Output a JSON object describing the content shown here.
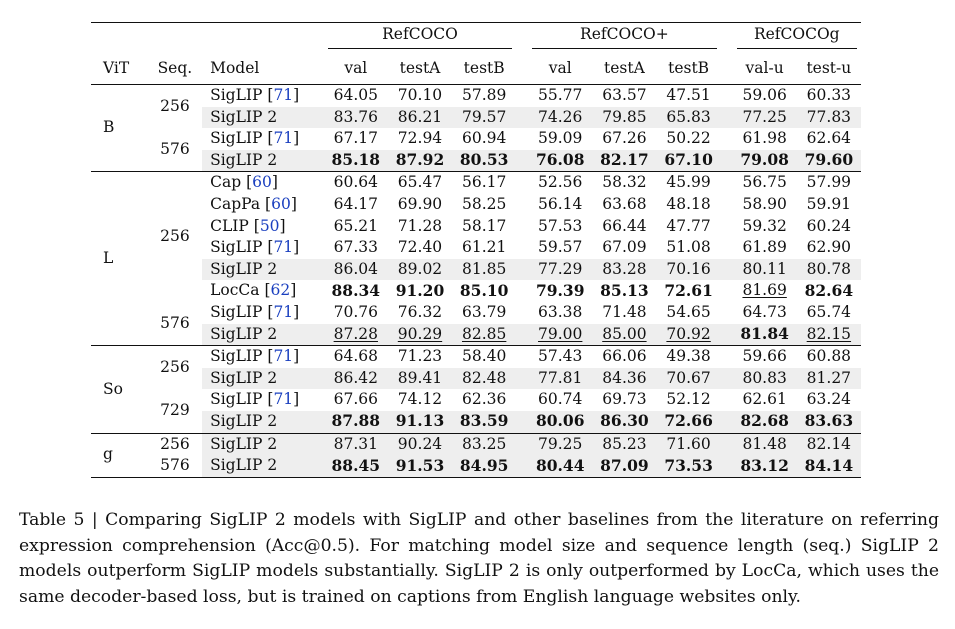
{
  "table": {
    "group_headers": [
      "RefCOCO",
      "RefCOCO+",
      "RefCOCOg"
    ],
    "column_headers": [
      "ViT",
      "Seq.",
      "Model",
      "val",
      "testA",
      "testB",
      "val",
      "testA",
      "testB",
      "val-u",
      "test-u"
    ],
    "vit_labels": [
      "B",
      "L",
      "So",
      "g"
    ],
    "seq_labels": [
      "256",
      "576",
      "256",
      "576",
      "256",
      "729",
      "256",
      "576"
    ],
    "rows": [
      {
        "model": "SigLIP",
        "ref": "71",
        "values": [
          "64.05",
          "70.10",
          "57.89",
          "55.77",
          "63.57",
          "47.51",
          "59.06",
          "60.33"
        ]
      },
      {
        "model": "SigLIP 2",
        "ref": "",
        "values": [
          "83.76",
          "86.21",
          "79.57",
          "74.26",
          "79.85",
          "65.83",
          "77.25",
          "77.83"
        ]
      },
      {
        "model": "SigLIP",
        "ref": "71",
        "values": [
          "67.17",
          "72.94",
          "60.94",
          "59.09",
          "67.26",
          "50.22",
          "61.98",
          "62.64"
        ]
      },
      {
        "model": "SigLIP 2",
        "ref": "",
        "values": [
          "85.18",
          "87.92",
          "80.53",
          "76.08",
          "82.17",
          "67.10",
          "79.08",
          "79.60"
        ]
      },
      {
        "model": "Cap",
        "ref": "60",
        "values": [
          "60.64",
          "65.47",
          "56.17",
          "52.56",
          "58.32",
          "45.99",
          "56.75",
          "57.99"
        ]
      },
      {
        "model": "CapPa",
        "ref": "60",
        "values": [
          "64.17",
          "69.90",
          "58.25",
          "56.14",
          "63.68",
          "48.18",
          "58.90",
          "59.91"
        ]
      },
      {
        "model": "CLIP",
        "ref": "50",
        "values": [
          "65.21",
          "71.28",
          "58.17",
          "57.53",
          "66.44",
          "47.77",
          "59.32",
          "60.24"
        ]
      },
      {
        "model": "SigLIP",
        "ref": "71",
        "values": [
          "67.33",
          "72.40",
          "61.21",
          "59.57",
          "67.09",
          "51.08",
          "61.89",
          "62.90"
        ]
      },
      {
        "model": "SigLIP 2",
        "ref": "",
        "values": [
          "86.04",
          "89.02",
          "81.85",
          "77.29",
          "83.28",
          "70.16",
          "80.11",
          "80.78"
        ]
      },
      {
        "model": "LocCa",
        "ref": "62",
        "values": [
          "88.34",
          "91.20",
          "85.10",
          "79.39",
          "85.13",
          "72.61",
          "81.69",
          "82.64"
        ]
      },
      {
        "model": "SigLIP",
        "ref": "71",
        "values": [
          "70.76",
          "76.32",
          "63.79",
          "63.38",
          "71.48",
          "54.65",
          "64.73",
          "65.74"
        ]
      },
      {
        "model": "SigLIP 2",
        "ref": "",
        "values": [
          "87.28",
          "90.29",
          "82.85",
          "79.00",
          "85.00",
          "70.92",
          "81.84",
          "82.15"
        ]
      },
      {
        "model": "SigLIP",
        "ref": "71",
        "values": [
          "64.68",
          "71.23",
          "58.40",
          "57.43",
          "66.06",
          "49.38",
          "59.66",
          "60.88"
        ]
      },
      {
        "model": "SigLIP 2",
        "ref": "",
        "values": [
          "86.42",
          "89.41",
          "82.48",
          "77.81",
          "84.36",
          "70.67",
          "80.83",
          "81.27"
        ]
      },
      {
        "model": "SigLIP",
        "ref": "71",
        "values": [
          "67.66",
          "74.12",
          "62.36",
          "60.74",
          "69.73",
          "52.12",
          "62.61",
          "63.24"
        ]
      },
      {
        "model": "SigLIP 2",
        "ref": "",
        "values": [
          "87.88",
          "91.13",
          "83.59",
          "80.06",
          "86.30",
          "72.66",
          "82.68",
          "83.63"
        ]
      },
      {
        "model": "SigLIP 2",
        "ref": "",
        "values": [
          "87.31",
          "90.24",
          "83.25",
          "79.25",
          "85.23",
          "71.60",
          "81.48",
          "82.14"
        ]
      },
      {
        "model": "SigLIP 2",
        "ref": "",
        "values": [
          "88.45",
          "91.53",
          "84.95",
          "80.44",
          "87.09",
          "73.53",
          "83.12",
          "84.14"
        ]
      }
    ]
  },
  "caption": "Table 5 | Comparing SigLIP 2 models with SigLIP and other baselines from the literature on referring expression comprehension (Acc@0.5). For matching model size and sequence length (seq.) SigLIP 2 models outperform SigLIP models substantially. SigLIP 2 is only outperformed by LocCa, which uses the same decoder-based loss, but is trained on captions from English language websites only.",
  "colors": {
    "citation": "#1a3fbf",
    "shaded_row": "#eeeeee",
    "rule": "#111111"
  }
}
